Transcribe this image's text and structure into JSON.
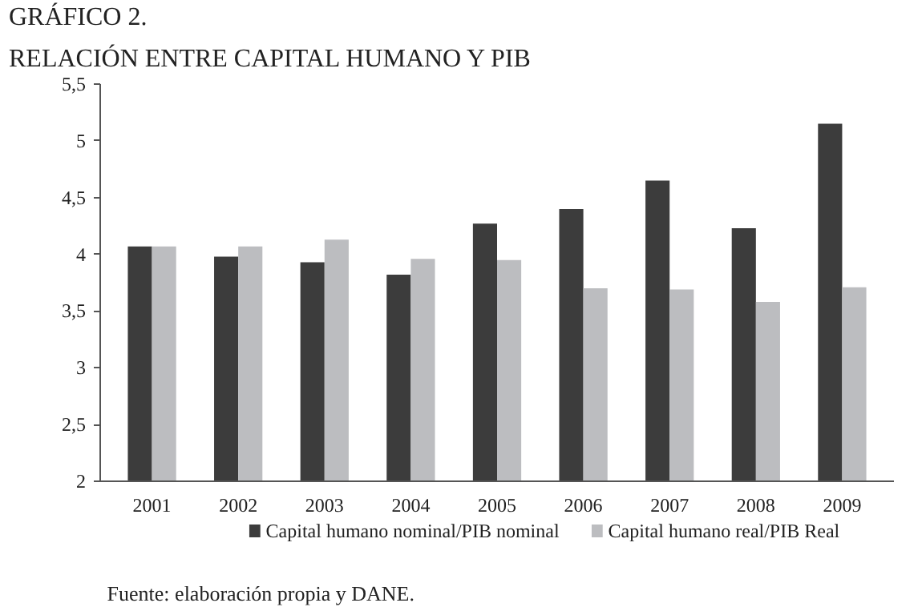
{
  "chart_data": {
    "type": "bar",
    "title": "GRÁFICO 2.",
    "subtitle": "RELACIÓN ENTRE CAPITAL HUMANO Y PIB",
    "categories": [
      "2001",
      "2002",
      "2003",
      "2004",
      "2005",
      "2006",
      "2007",
      "2008",
      "2009"
    ],
    "series": [
      {
        "name": "Capital humano nominal/PIB nominal",
        "color": "#3c3c3c",
        "values": [
          4.07,
          3.98,
          3.93,
          3.82,
          4.27,
          4.4,
          4.65,
          4.23,
          5.15
        ]
      },
      {
        "name": "Capital humano real/PIB Real",
        "color": "#bcbdc0",
        "values": [
          4.07,
          4.07,
          4.13,
          3.96,
          3.95,
          3.7,
          3.69,
          3.58,
          3.71
        ]
      }
    ],
    "ylim": [
      2,
      5.5
    ],
    "yticks": [
      2,
      {
        "value": 2.5,
        "label": "2,5"
      },
      3,
      {
        "value": 3.5,
        "label": "3,5"
      },
      4,
      {
        "value": 4.5,
        "label": "4,5"
      },
      5,
      {
        "value": 5.5,
        "label": "5,5"
      }
    ],
    "grid": false,
    "legend": "bottom",
    "annotations": [
      "Fuente: elaboración propia y DANE."
    ]
  }
}
